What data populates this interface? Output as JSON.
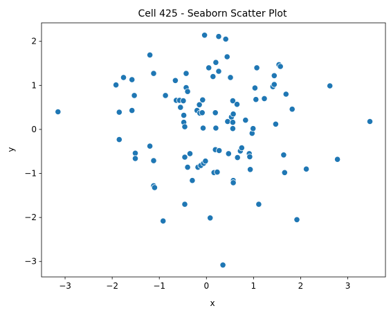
{
  "chart_data": {
    "type": "scatter",
    "title": "Cell 425 - Seaborn Scatter Plot",
    "xlabel": "x",
    "ylabel": "y",
    "xlim": [
      -3.5,
      3.8
    ],
    "ylim": [
      -3.35,
      2.42
    ],
    "xticks": [
      -3,
      -2,
      -1,
      0,
      1,
      2,
      3
    ],
    "yticks": [
      -3,
      -2,
      -1,
      0,
      1,
      2
    ],
    "grid": false,
    "legend": "none",
    "marker_color": "#1f77b4",
    "marker_edge": "#ffffff",
    "points": [
      {
        "x": -3.15,
        "y": 0.4
      },
      {
        "x": -1.92,
        "y": 1.01
      },
      {
        "x": -1.85,
        "y": 0.39
      },
      {
        "x": -1.85,
        "y": -0.23
      },
      {
        "x": -1.76,
        "y": 1.18
      },
      {
        "x": -1.58,
        "y": 1.13
      },
      {
        "x": -1.58,
        "y": 0.43
      },
      {
        "x": -1.53,
        "y": 0.77
      },
      {
        "x": -1.51,
        "y": -0.54
      },
      {
        "x": -1.51,
        "y": -0.66
      },
      {
        "x": -1.2,
        "y": 1.69
      },
      {
        "x": -1.2,
        "y": -0.38
      },
      {
        "x": -1.12,
        "y": 1.27
      },
      {
        "x": -1.12,
        "y": -0.71
      },
      {
        "x": -1.12,
        "y": -1.28
      },
      {
        "x": -1.1,
        "y": -1.32
      },
      {
        "x": -0.92,
        "y": -2.08
      },
      {
        "x": -0.87,
        "y": 0.77
      },
      {
        "x": -0.66,
        "y": 1.11
      },
      {
        "x": -0.64,
        "y": 0.66
      },
      {
        "x": -0.57,
        "y": 0.66
      },
      {
        "x": -0.55,
        "y": 0.5
      },
      {
        "x": -0.49,
        "y": 0.65
      },
      {
        "x": -0.48,
        "y": 0.32
      },
      {
        "x": -0.48,
        "y": 0.16
      },
      {
        "x": -0.46,
        "y": 0.06
      },
      {
        "x": -0.46,
        "y": -0.63
      },
      {
        "x": -0.46,
        "y": -1.7
      },
      {
        "x": -0.43,
        "y": 1.27
      },
      {
        "x": -0.43,
        "y": 0.95
      },
      {
        "x": -0.4,
        "y": 0.86
      },
      {
        "x": -0.4,
        "y": -0.86
      },
      {
        "x": -0.35,
        "y": -0.55
      },
      {
        "x": -0.3,
        "y": -1.16
      },
      {
        "x": -0.2,
        "y": 0.43
      },
      {
        "x": -0.18,
        "y": -0.86
      },
      {
        "x": -0.15,
        "y": 0.56
      },
      {
        "x": -0.14,
        "y": 0.37
      },
      {
        "x": -0.12,
        "y": -0.82
      },
      {
        "x": -0.09,
        "y": 0.38
      },
      {
        "x": -0.08,
        "y": 0.67
      },
      {
        "x": -0.07,
        "y": 0.03
      },
      {
        "x": -0.06,
        "y": -0.77
      },
      {
        "x": -0.04,
        "y": 2.14
      },
      {
        "x": -0.02,
        "y": -0.72
      },
      {
        "x": 0.05,
        "y": 1.4
      },
      {
        "x": 0.08,
        "y": -2.01
      },
      {
        "x": 0.14,
        "y": 1.2
      },
      {
        "x": 0.16,
        "y": -0.98
      },
      {
        "x": 0.19,
        "y": 0.38
      },
      {
        "x": 0.19,
        "y": -0.46
      },
      {
        "x": 0.2,
        "y": 1.52
      },
      {
        "x": 0.2,
        "y": 0.03
      },
      {
        "x": 0.23,
        "y": -0.97
      },
      {
        "x": 0.26,
        "y": 2.11
      },
      {
        "x": 0.26,
        "y": 1.32
      },
      {
        "x": 0.27,
        "y": -0.48
      },
      {
        "x": 0.35,
        "y": -3.08
      },
      {
        "x": 0.41,
        "y": 2.05
      },
      {
        "x": 0.44,
        "y": 1.65
      },
      {
        "x": 0.45,
        "y": 0.18
      },
      {
        "x": 0.47,
        "y": -0.55
      },
      {
        "x": 0.51,
        "y": 1.18
      },
      {
        "x": 0.53,
        "y": 0.28
      },
      {
        "x": 0.56,
        "y": 0.65
      },
      {
        "x": 0.56,
        "y": 0.16
      },
      {
        "x": 0.56,
        "y": 0.02
      },
      {
        "x": 0.57,
        "y": 0.35
      },
      {
        "x": 0.57,
        "y": -1.16
      },
      {
        "x": 0.57,
        "y": -1.21
      },
      {
        "x": 0.65,
        "y": 0.57
      },
      {
        "x": 0.66,
        "y": -0.64
      },
      {
        "x": 0.72,
        "y": -0.49
      },
      {
        "x": 0.75,
        "y": -0.42
      },
      {
        "x": 0.83,
        "y": 0.21
      },
      {
        "x": 0.91,
        "y": -0.55
      },
      {
        "x": 0.92,
        "y": -0.62
      },
      {
        "x": 0.93,
        "y": -0.91
      },
      {
        "x": 0.97,
        "y": -0.09
      },
      {
        "x": 0.99,
        "y": 0.02
      },
      {
        "x": 1.03,
        "y": 0.94
      },
      {
        "x": 1.05,
        "y": 0.68
      },
      {
        "x": 1.07,
        "y": 1.4
      },
      {
        "x": 1.11,
        "y": -1.7
      },
      {
        "x": 1.23,
        "y": 0.7
      },
      {
        "x": 1.41,
        "y": 0.97
      },
      {
        "x": 1.44,
        "y": 1.22
      },
      {
        "x": 1.44,
        "y": 1.02
      },
      {
        "x": 1.47,
        "y": 0.12
      },
      {
        "x": 1.54,
        "y": 1.47
      },
      {
        "x": 1.57,
        "y": 1.43
      },
      {
        "x": 1.64,
        "y": -0.58
      },
      {
        "x": 1.66,
        "y": -0.98
      },
      {
        "x": 1.69,
        "y": 0.8
      },
      {
        "x": 1.82,
        "y": 0.46
      },
      {
        "x": 1.92,
        "y": -2.05
      },
      {
        "x": 2.12,
        "y": -0.9
      },
      {
        "x": 2.62,
        "y": 0.99
      },
      {
        "x": 2.78,
        "y": -0.68
      },
      {
        "x": 3.47,
        "y": 0.18
      }
    ]
  }
}
